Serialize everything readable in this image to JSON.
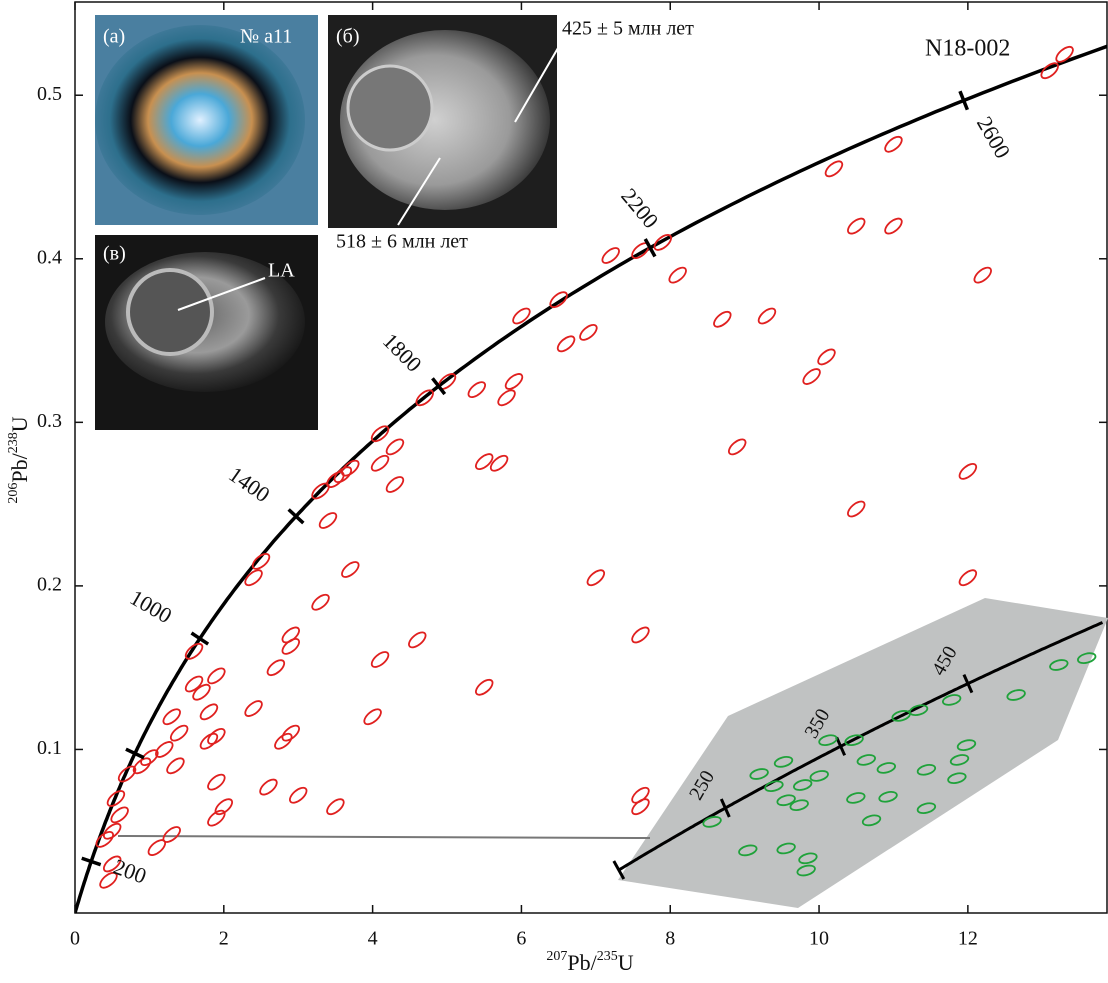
{
  "chart_data": {
    "type": "concordia",
    "sample_label": "N18-002",
    "xlabel": [
      "207",
      "Pb/",
      "235",
      "U"
    ],
    "ylabel": [
      "206",
      "Pb/",
      "238",
      "U"
    ],
    "xlim": [
      0,
      13.87
    ],
    "ylim": [
      0,
      0.557
    ],
    "xticks": [
      0,
      2,
      4,
      6,
      8,
      10,
      12
    ],
    "yticks": [
      0.1,
      0.2,
      0.3,
      0.4,
      0.5
    ],
    "age_ticks": [
      200,
      1000,
      1400,
      1800,
      2200,
      2600
    ],
    "unlabeled_age_ticks": [
      600
    ],
    "series": [
      {
        "color": "#e0201f",
        "x": [
          13.1,
          13.3,
          10.2,
          7.6,
          7.9,
          7.2,
          10.5,
          11.0,
          8.1,
          6.0,
          6.5,
          6.9,
          6.6,
          5.0,
          4.7,
          5.4,
          5.9,
          5.8,
          4.1,
          4.3,
          4.1,
          4.3,
          5.5,
          5.7,
          3.3,
          3.5,
          3.6,
          3.7,
          3.4,
          2.5,
          2.4,
          3.7,
          3.3,
          2.9,
          2.9,
          2.7,
          4.1,
          4.6,
          1.9,
          1.6,
          1.7,
          1.6,
          1.8,
          1.3,
          1.4,
          1.8,
          1.9,
          2.4,
          4.0,
          2.8,
          2.9,
          5.5,
          1.9,
          2.0,
          1.9,
          2.6,
          3.0,
          3.5,
          1.3,
          1.1,
          0.9,
          1.0,
          1.2,
          0.7,
          0.6,
          0.5,
          0.4,
          0.5,
          0.45,
          0.55,
          1.35,
          9.3,
          8.7,
          8.9,
          9.9,
          10.1,
          11.0,
          12.2,
          12.0,
          10.5,
          12.0,
          7.0,
          7.6,
          7.6,
          7.6
        ],
        "values": [
          0.515,
          0.525,
          0.455,
          0.405,
          0.41,
          0.402,
          0.42,
          0.42,
          0.39,
          0.365,
          0.375,
          0.355,
          0.348,
          0.325,
          0.315,
          0.32,
          0.325,
          0.315,
          0.293,
          0.285,
          0.275,
          0.262,
          0.276,
          0.275,
          0.258,
          0.265,
          0.268,
          0.272,
          0.24,
          0.215,
          0.205,
          0.21,
          0.19,
          0.17,
          0.163,
          0.15,
          0.155,
          0.167,
          0.145,
          0.14,
          0.135,
          0.16,
          0.123,
          0.12,
          0.11,
          0.105,
          0.108,
          0.125,
          0.12,
          0.105,
          0.11,
          0.138,
          0.08,
          0.065,
          0.058,
          0.077,
          0.072,
          0.065,
          0.048,
          0.04,
          0.09,
          0.095,
          0.1,
          0.085,
          0.06,
          0.05,
          0.045,
          0.03,
          0.02,
          0.07,
          0.09,
          0.365,
          0.363,
          0.285,
          0.328,
          0.34,
          0.47,
          0.39,
          0.27,
          0.247,
          0.205,
          0.205,
          0.17,
          0.072,
          0.065
        ]
      }
    ],
    "inset": {
      "xlim": [
        0.156,
        0.715
      ],
      "ylim": [
        0.0127,
        0.0951
      ],
      "age_ticks": [
        250,
        350,
        450
      ],
      "series": [
        {
          "color": "#1fa23a",
          "x": [
            0.264,
            0.318,
            0.346,
            0.335,
            0.349,
            0.368,
            0.387,
            0.364,
            0.397,
            0.427,
            0.441,
            0.429,
            0.464,
            0.466,
            0.481,
            0.501,
            0.51,
            0.51,
            0.539,
            0.548,
            0.545,
            0.556,
            0.613,
            0.662,
            0.694,
            0.447,
            0.374,
            0.372,
            0.349,
            0.305
          ],
          "values": [
            0.0359,
            0.0485,
            0.0517,
            0.0453,
            0.0416,
            0.0456,
            0.048,
            0.0403,
            0.0574,
            0.0574,
            0.0522,
            0.0422,
            0.0501,
            0.0425,
            0.0638,
            0.0653,
            0.0496,
            0.0395,
            0.068,
            0.0522,
            0.0474,
            0.0561,
            0.0693,
            0.0772,
            0.079,
            0.0363,
            0.0263,
            0.0231,
            0.0289,
            0.0284
          ]
        }
      ]
    },
    "photos": {
      "a": {
        "tag": "(а)",
        "grain": "№ а11"
      },
      "b": {
        "tag": "(б)",
        "age_rim": "425 ± 5 млн лет",
        "age_core": "518 ± 6 млн лет"
      },
      "c": {
        "tag": "(в)",
        "spot": "LA"
      }
    }
  }
}
